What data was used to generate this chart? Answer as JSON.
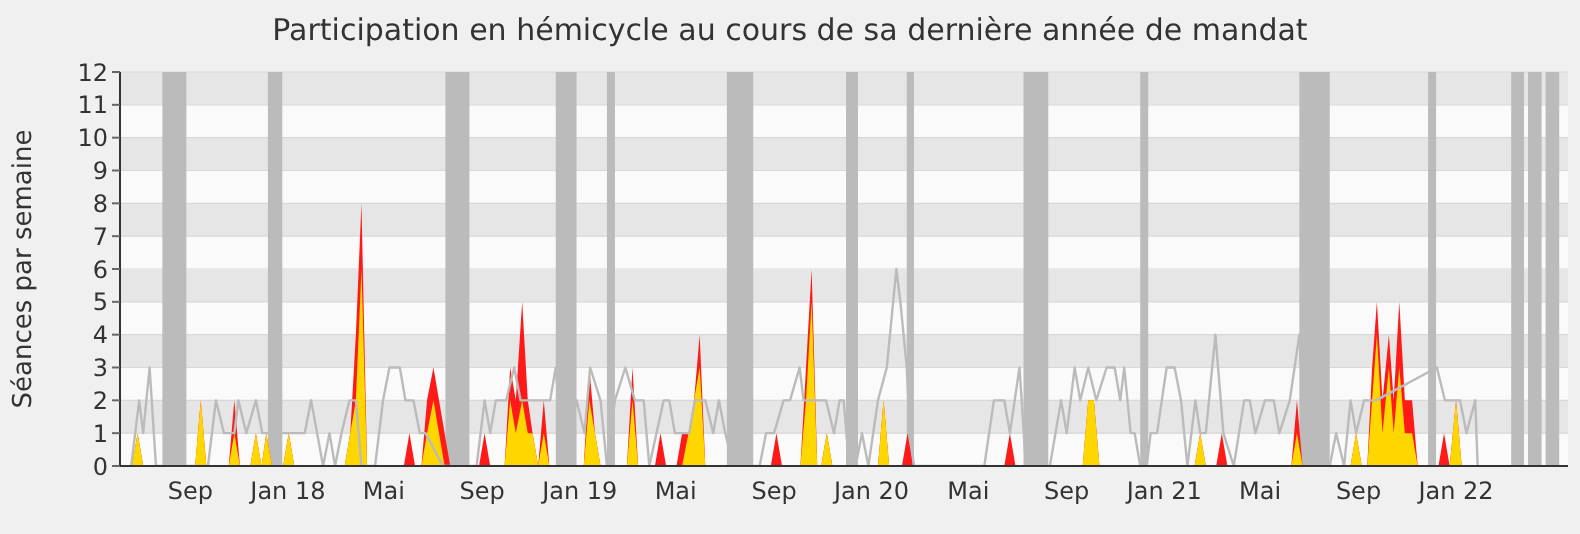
{
  "chart_data": {
    "type": "area",
    "title": "Participation en hémicycle au cours de sa dernière année de mandat",
    "ylabel": "Séances par semaine",
    "x": [
      "2017-07-04",
      "2017-07-11",
      "2017-07-18",
      "2017-09-21",
      "2017-09-28",
      "2017-10-05",
      "2017-11-02",
      "2017-11-09",
      "2017-11-16",
      "2017-11-29",
      "2017-12-06",
      "2017-12-13",
      "2017-12-19",
      "2017-12-26",
      "2018-01-09",
      "2018-01-16",
      "2018-01-23",
      "2018-03-27",
      "2018-04-03",
      "2018-04-10",
      "2018-04-17",
      "2018-04-24",
      "2018-06-09",
      "2018-06-16",
      "2018-06-23",
      "2018-07-01",
      "2018-07-08",
      "2018-07-16",
      "2018-07-23",
      "2018-07-30",
      "2018-08-06",
      "2018-09-11",
      "2018-09-18",
      "2018-09-25",
      "2018-10-13",
      "2018-10-20",
      "2018-10-27",
      "2018-11-04",
      "2018-11-11",
      "2018-11-17",
      "2018-11-24",
      "2018-12-01",
      "2018-12-08",
      "2019-01-20",
      "2019-01-27",
      "2019-02-03",
      "2019-02-10",
      "2019-03-15",
      "2019-03-22",
      "2019-03-29",
      "2019-04-19",
      "2019-04-26",
      "2019-05-03",
      "2019-05-16",
      "2019-05-23",
      "2019-05-31",
      "2019-06-07",
      "2019-06-14",
      "2019-06-21",
      "2019-09-11",
      "2019-09-18",
      "2019-09-25",
      "2019-10-18",
      "2019-10-25",
      "2019-11-01",
      "2019-11-08",
      "2019-11-13",
      "2019-11-20",
      "2019-11-27",
      "2020-01-23",
      "2020-01-30",
      "2020-02-06",
      "2020-02-22",
      "2020-02-29",
      "2020-03-07",
      "2020-06-29",
      "2020-07-06",
      "2020-07-13",
      "2020-10-05",
      "2020-10-12",
      "2020-10-19",
      "2020-10-26",
      "2021-02-22",
      "2021-03-01",
      "2021-03-08",
      "2021-03-21",
      "2021-03-28",
      "2021-04-04",
      "2021-06-23",
      "2021-06-30",
      "2021-07-07",
      "2021-09-05",
      "2021-09-12",
      "2021-09-19",
      "2021-09-26",
      "2021-10-02",
      "2021-10-08",
      "2021-10-15",
      "2021-10-23",
      "2021-10-29",
      "2021-11-05",
      "2021-11-12",
      "2021-11-21",
      "2021-11-28",
      "2021-12-24",
      "2021-12-31",
      "2022-01-07",
      "2022-01-15",
      "2022-01-22"
    ],
    "series": [
      {
        "type": "line",
        "color": "#bbbbbb",
        "x": [
          "2017-07-03",
          "2017-07-13",
          "2017-07-18",
          "2017-07-26",
          "2017-08-03",
          "2017-10-07",
          "2017-10-17",
          "2017-10-27",
          "2017-11-09",
          "2017-11-14",
          "2017-11-24",
          "2017-12-06",
          "2017-12-14",
          "2018-01-01",
          "2018-02-05",
          "2018-02-13",
          "2018-02-28",
          "2018-03-08",
          "2018-03-15",
          "2018-03-23",
          "2018-04-02",
          "2018-04-10",
          "2018-04-17",
          "2018-05-04",
          "2018-05-14",
          "2018-05-22",
          "2018-06-04",
          "2018-06-11",
          "2018-06-21",
          "2018-06-29",
          "2018-07-06",
          "2018-07-28",
          "2018-09-08",
          "2018-09-18",
          "2018-09-25",
          "2018-10-02",
          "2018-10-15",
          "2018-10-25",
          "2018-11-02",
          "2018-12-09",
          "2018-12-16",
          "2018-12-26",
          "2019-01-11",
          "2019-01-21",
          "2019-01-28",
          "2019-02-10",
          "2019-02-18",
          "2019-02-28",
          "2019-03-13",
          "2019-03-25",
          "2019-04-05",
          "2019-04-12",
          "2019-04-30",
          "2019-05-07",
          "2019-05-14",
          "2019-06-01",
          "2019-06-08",
          "2019-06-21",
          "2019-07-01",
          "2019-07-08",
          "2019-07-16",
          "2019-07-26",
          "2019-08-28",
          "2019-09-05",
          "2019-09-15",
          "2019-09-27",
          "2019-10-05",
          "2019-10-17",
          "2019-10-22",
          "2019-11-19",
          "2019-11-29",
          "2019-12-06",
          "2019-12-11",
          "2019-12-18",
          "2019-12-26",
          "2020-01-03",
          "2020-01-11",
          "2020-01-23",
          "2020-02-03",
          "2020-02-15",
          "2020-02-20",
          "2020-02-28",
          "2020-03-03",
          "2020-03-08",
          "2020-06-04",
          "2020-06-16",
          "2020-06-29",
          "2020-07-06",
          "2020-07-18",
          "2020-07-26",
          "2020-08-25",
          "2020-09-08",
          "2020-09-15",
          "2020-09-25",
          "2020-10-02",
          "2020-10-12",
          "2020-10-22",
          "2020-11-04",
          "2020-11-14",
          "2020-11-21",
          "2020-11-26",
          "2020-12-04",
          "2020-12-09",
          "2020-12-16",
          "2020-12-24",
          "2020-12-29",
          "2021-01-06",
          "2021-01-18",
          "2021-01-28",
          "2021-02-05",
          "2021-02-13",
          "2021-02-23",
          "2021-03-01",
          "2021-03-08",
          "2021-03-20",
          "2021-03-30",
          "2021-04-12",
          "2021-04-25",
          "2021-05-02",
          "2021-05-09",
          "2021-05-21",
          "2021-06-01",
          "2021-06-08",
          "2021-06-21",
          "2021-07-03",
          "2021-07-11",
          "2021-08-10",
          "2021-08-18",
          "2021-08-28",
          "2021-09-05",
          "2021-09-12",
          "2021-09-22",
          "2021-10-07",
          "2021-12-22",
          "2022-01-01",
          "2022-01-13",
          "2022-01-20",
          "2022-01-28",
          "2022-02-08",
          "2022-02-11"
        ],
        "values": [
          0,
          2,
          1,
          3,
          0,
          0,
          2,
          1,
          1,
          2,
          1,
          2,
          1,
          1,
          1,
          2,
          0,
          1,
          0,
          1,
          2,
          2,
          0,
          0,
          2,
          3,
          3,
          2,
          2,
          1,
          1,
          0,
          0,
          2,
          1,
          2,
          2,
          3,
          2,
          2,
          3,
          0,
          2,
          1,
          3,
          2,
          0,
          2,
          3,
          2,
          2,
          0,
          2,
          2,
          1,
          1,
          2,
          2,
          1,
          2,
          1,
          0,
          0,
          1,
          1,
          2,
          2,
          3,
          2,
          2,
          1,
          2,
          2,
          0,
          0,
          1,
          0,
          2,
          3,
          6,
          5,
          3,
          1,
          0,
          0,
          2,
          2,
          1,
          3,
          0,
          0,
          2,
          1,
          3,
          2,
          3,
          2,
          3,
          3,
          2,
          3,
          1,
          1,
          0,
          0,
          1,
          1,
          3,
          3,
          2,
          0,
          2,
          1,
          1,
          4,
          1,
          0,
          2,
          2,
          1,
          2,
          2,
          1,
          2,
          4,
          0,
          0,
          1,
          0,
          2,
          1,
          2,
          2,
          3,
          2,
          2,
          2,
          1,
          2,
          0
        ]
      },
      {
        "color": "#ff1a1a",
        "values": [
          0,
          1,
          0,
          0,
          2,
          0,
          0,
          2,
          0,
          0,
          1,
          0,
          1,
          0,
          0,
          1,
          0,
          0,
          1,
          4,
          8,
          0,
          0,
          1,
          0,
          0,
          2,
          3,
          2,
          1,
          0,
          0,
          1,
          0,
          0,
          3,
          2,
          5,
          2,
          1,
          0,
          2,
          0,
          0,
          3,
          1,
          0,
          0,
          3,
          0,
          0,
          1,
          0,
          0,
          1,
          1,
          2,
          4,
          0,
          0,
          1,
          0,
          0,
          3,
          6,
          0,
          0,
          1,
          0,
          0,
          2,
          0,
          0,
          1,
          0,
          0,
          1,
          0,
          0,
          2,
          2,
          0,
          0,
          1,
          0,
          0,
          1,
          0,
          0,
          2,
          0,
          0,
          1,
          0,
          0,
          3,
          5,
          2,
          4,
          2,
          5,
          2,
          2,
          0,
          0,
          1,
          0,
          2,
          0
        ]
      },
      {
        "color": "#ffd700",
        "values": [
          0,
          1,
          0,
          0,
          2,
          0,
          0,
          1,
          0,
          0,
          1,
          0,
          1,
          0,
          0,
          1,
          0,
          0,
          1,
          2,
          6,
          0,
          0,
          0,
          0,
          0,
          1,
          2,
          1,
          0,
          0,
          0,
          0,
          0,
          0,
          2,
          1,
          2,
          1,
          1,
          0,
          1,
          0,
          0,
          2,
          1,
          0,
          0,
          2,
          0,
          0,
          0,
          0,
          0,
          0,
          1,
          2,
          3,
          0,
          0,
          0,
          0,
          0,
          2,
          5,
          0,
          0,
          1,
          0,
          0,
          2,
          0,
          0,
          0,
          0,
          0,
          0,
          0,
          0,
          2,
          2,
          0,
          0,
          1,
          0,
          0,
          0,
          0,
          0,
          1,
          0,
          0,
          1,
          0,
          0,
          2,
          4,
          1,
          3,
          1,
          3,
          1,
          1,
          0,
          0,
          0,
          0,
          2,
          0
        ]
      }
    ],
    "xlim": [
      "2017-06-19",
      "2022-06-04"
    ],
    "xticks": [
      {
        "value": "2017-09-15",
        "label": "Sep"
      },
      {
        "value": "2018-01-15",
        "label": "Jan 18"
      },
      {
        "value": "2018-05-15",
        "label": "Mai"
      },
      {
        "value": "2018-09-15",
        "label": "Sep"
      },
      {
        "value": "2019-01-15",
        "label": "Jan 19"
      },
      {
        "value": "2019-05-15",
        "label": "Mai"
      },
      {
        "value": "2019-09-15",
        "label": "Sep"
      },
      {
        "value": "2020-01-15",
        "label": "Jan 20"
      },
      {
        "value": "2020-05-15",
        "label": "Mai"
      },
      {
        "value": "2020-09-15",
        "label": "Sep"
      },
      {
        "value": "2021-01-15",
        "label": "Jan 21"
      },
      {
        "value": "2021-05-15",
        "label": "Mai"
      },
      {
        "value": "2021-09-15",
        "label": "Sep"
      },
      {
        "value": "2022-01-15",
        "label": "Jan 22"
      }
    ],
    "ylim": [
      0,
      12
    ],
    "yticks": [
      0,
      1,
      2,
      3,
      4,
      5,
      6,
      7,
      8,
      9,
      10,
      11,
      12
    ],
    "grid": "y",
    "bands": [
      {
        "axis": "x",
        "from": "2017-08-11",
        "to": "2017-09-10",
        "color": "#bbbbbb"
      },
      {
        "axis": "x",
        "from": "2017-12-21",
        "to": "2018-01-08",
        "color": "#bbbbbb"
      },
      {
        "axis": "x",
        "from": "2018-07-31",
        "to": "2018-08-30",
        "color": "#bbbbbb"
      },
      {
        "axis": "x",
        "from": "2018-12-16",
        "to": "2019-01-11",
        "color": "#bbbbbb"
      },
      {
        "axis": "x",
        "from": "2019-02-18",
        "to": "2019-02-28",
        "color": "#bbbbbb"
      },
      {
        "axis": "x",
        "from": "2019-07-18",
        "to": "2019-08-20",
        "color": "#bbbbbb"
      },
      {
        "axis": "x",
        "from": "2019-12-14",
        "to": "2019-12-29",
        "color": "#bbbbbb"
      },
      {
        "axis": "x",
        "from": "2020-02-28",
        "to": "2020-03-08",
        "color": "#bbbbbb"
      },
      {
        "axis": "x",
        "from": "2020-07-23",
        "to": "2020-08-23",
        "color": "#bbbbbb"
      },
      {
        "axis": "x",
        "from": "2020-12-16",
        "to": "2020-12-26",
        "color": "#bbbbbb"
      },
      {
        "axis": "x",
        "from": "2021-07-03",
        "to": "2021-08-10",
        "color": "#bbbbbb"
      },
      {
        "axis": "x",
        "from": "2021-12-11",
        "to": "2021-12-21",
        "color": "#bbbbbb"
      },
      {
        "axis": "x",
        "from": "2022-03-25",
        "to": "2022-04-10",
        "color": "#bbbbbb"
      },
      {
        "axis": "x",
        "from": "2022-04-15",
        "to": "2022-05-02",
        "color": "#bbbbbb"
      },
      {
        "axis": "x",
        "from": "2022-05-07",
        "to": "2022-05-24",
        "color": "#bbbbbb"
      }
    ]
  }
}
